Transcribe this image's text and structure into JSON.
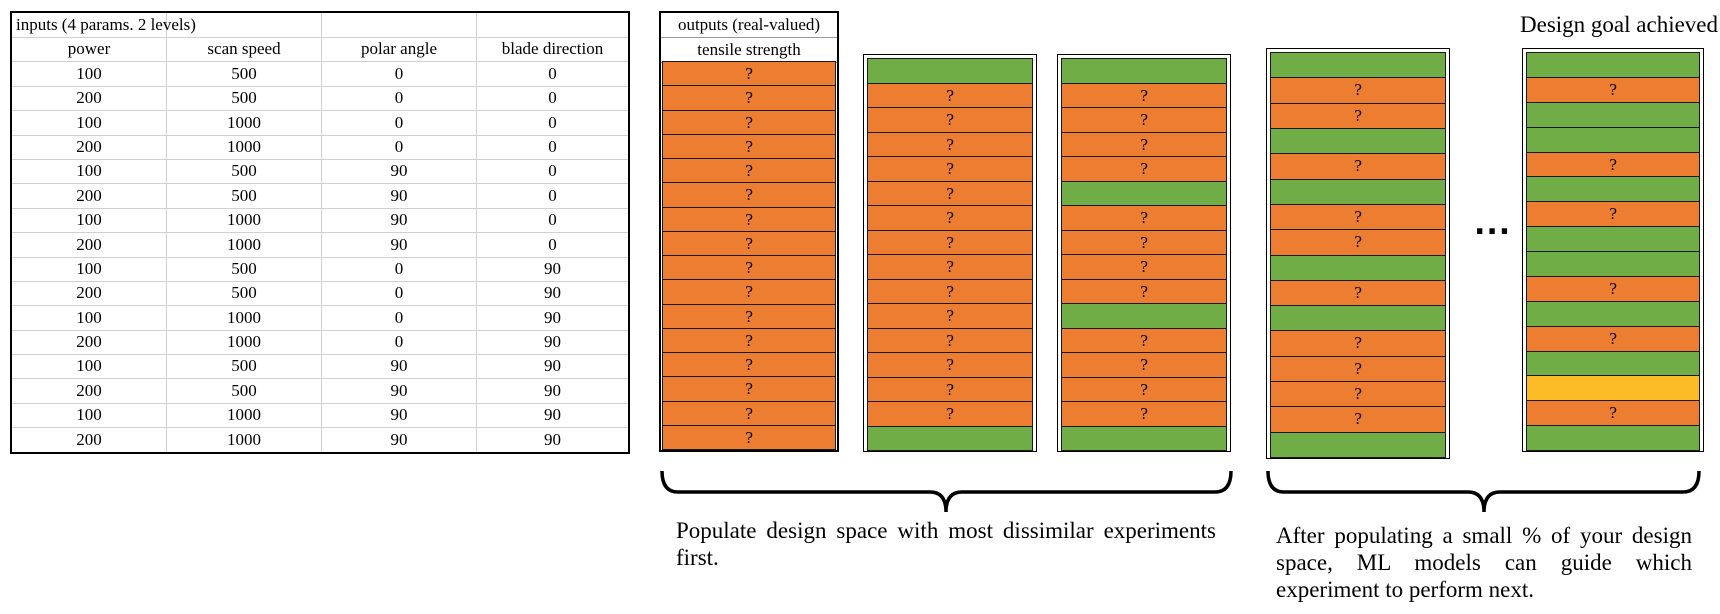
{
  "inputs_table": {
    "title": "inputs (4 params. 2 levels)",
    "headers": [
      "power",
      "scan speed",
      "polar angle",
      "blade direction"
    ],
    "rows": [
      [
        "100",
        "500",
        "0",
        "0"
      ],
      [
        "200",
        "500",
        "0",
        "0"
      ],
      [
        "100",
        "1000",
        "0",
        "0"
      ],
      [
        "200",
        "1000",
        "0",
        "0"
      ],
      [
        "100",
        "500",
        "90",
        "0"
      ],
      [
        "200",
        "500",
        "90",
        "0"
      ],
      [
        "100",
        "1000",
        "90",
        "0"
      ],
      [
        "200",
        "1000",
        "90",
        "0"
      ],
      [
        "100",
        "500",
        "0",
        "90"
      ],
      [
        "200",
        "500",
        "0",
        "90"
      ],
      [
        "100",
        "1000",
        "0",
        "90"
      ],
      [
        "200",
        "1000",
        "0",
        "90"
      ],
      [
        "100",
        "500",
        "90",
        "90"
      ],
      [
        "200",
        "500",
        "90",
        "90"
      ],
      [
        "100",
        "1000",
        "90",
        "90"
      ],
      [
        "200",
        "1000",
        "90",
        "90"
      ]
    ]
  },
  "outputs": {
    "title": "outputs (real-valued)",
    "subtitle": "tensile strength",
    "unknown_mark": "?"
  },
  "columns": [
    {
      "id": "col-1",
      "cells": [
        "o",
        "o",
        "o",
        "o",
        "o",
        "o",
        "o",
        "o",
        "o",
        "o",
        "o",
        "o",
        "o",
        "o",
        "o",
        "o"
      ]
    },
    {
      "id": "col-2",
      "cells": [
        "g",
        "o",
        "o",
        "o",
        "o",
        "o",
        "o",
        "o",
        "o",
        "o",
        "o",
        "o",
        "o",
        "o",
        "o",
        "g"
      ]
    },
    {
      "id": "col-3",
      "cells": [
        "g",
        "o",
        "o",
        "o",
        "o",
        "g",
        "o",
        "o",
        "o",
        "o",
        "g",
        "o",
        "o",
        "o",
        "o",
        "g"
      ]
    },
    {
      "id": "col-4",
      "cells": [
        "g",
        "o",
        "o",
        "g",
        "o",
        "g",
        "o",
        "o",
        "g",
        "o",
        "g",
        "o",
        "o",
        "o",
        "o",
        "g"
      ]
    },
    {
      "id": "col-5",
      "cells": [
        "g",
        "o",
        "g",
        "g",
        "o",
        "g",
        "o",
        "g",
        "g",
        "o",
        "g",
        "o",
        "g",
        "y",
        "o",
        "g"
      ]
    }
  ],
  "colors": {
    "orange": "#ed7d31",
    "green": "#70ad47",
    "yellow": "#fbbc28"
  },
  "goal_label": "Design goal achieved",
  "ellipsis": "...",
  "captions": {
    "left": "Populate design space with most dissimilar experiments first.",
    "right": "After populating a small % of your design space, ML models can guide which experiment to perform next."
  }
}
